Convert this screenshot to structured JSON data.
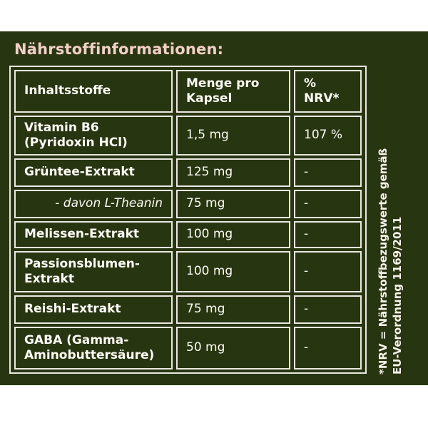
{
  "title": "Nährstoffinformationen:",
  "colors": {
    "panel_background": "#283511",
    "title_pink": "#f2d0c6",
    "table_text": "#fcfbf5",
    "table_border": "#eae8e1",
    "page_background": "#ffffff"
  },
  "table": {
    "headers": [
      [
        "Inhaltsstoffe"
      ],
      [
        "Menge pro",
        "Kapsel"
      ],
      [
        "%",
        "NRV*"
      ]
    ],
    "rows": [
      {
        "ingredient": "Vitamin B6 (Pyridoxin HCl)",
        "amount": "1,5 mg",
        "nrv": "107 %"
      },
      {
        "ingredient": "Grüntee-Extrakt",
        "amount": "125 mg",
        "nrv": "-"
      },
      {
        "ingredient": "- davon L-Theanin",
        "amount": "75 mg",
        "nrv": "-"
      },
      {
        "ingredient": "Melissen-Extrakt",
        "amount": "100 mg",
        "nrv": "-"
      },
      {
        "ingredient": "Passionsblumen-Extrakt",
        "amount": "100 mg",
        "nrv": "-"
      },
      {
        "ingredient": "Reishi-Extrakt",
        "amount": "75 mg",
        "nrv": "-"
      },
      {
        "ingredient": "GABA (Gamma-Aminobuttersäure)",
        "amount": "50 mg",
        "nrv": "-"
      }
    ]
  },
  "footnote": {
    "line1": "*NRV = Nährstoffbezugswerte gemäß",
    "line2": "EU-Verordnung 1169/2011"
  }
}
